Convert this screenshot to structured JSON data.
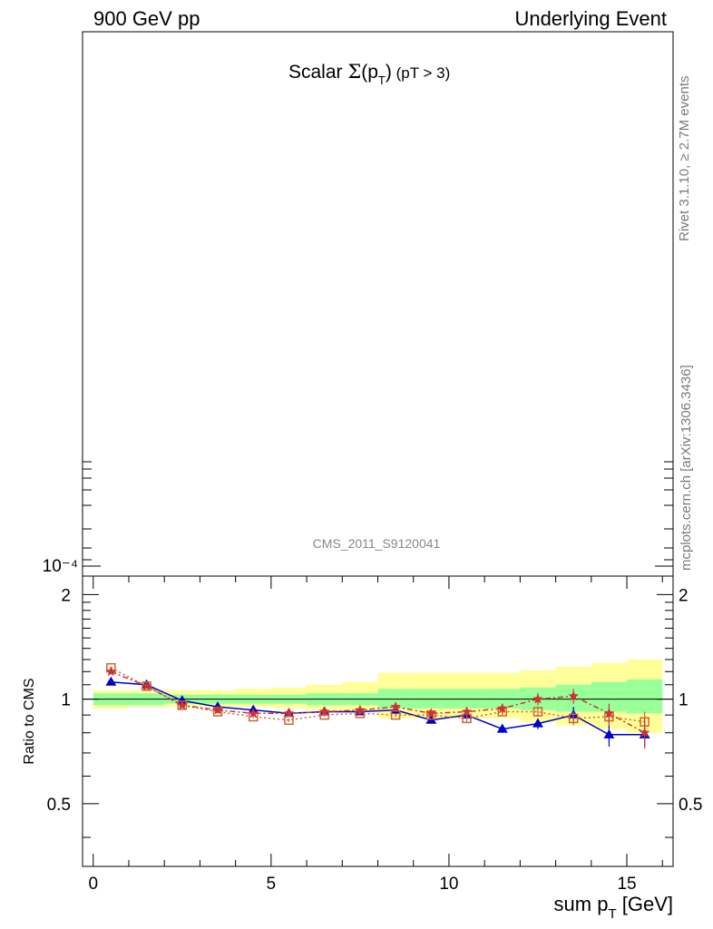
{
  "header": {
    "left": "900 GeV pp",
    "right": "Underlying Event"
  },
  "side_labels": {
    "rivet": "Rivet 3.1.10, ≥ 2.7M events",
    "mcplots": "mcplots.cern.ch [arXiv:1306.3436]"
  },
  "chart_data": {
    "type": "line",
    "title": "Scalar Σ(p_T) (pT > 3)",
    "watermark": "CMS_2011_S9120041",
    "main_panel": {
      "yscale": "log",
      "ytick_labels": [
        "10⁻⁴"
      ]
    },
    "ratio_panel": {
      "ylabel": "Ratio to CMS",
      "xlabel": "sum p_T [GeV]",
      "xlim": [
        -0.3,
        16.3
      ],
      "ylim": [
        0.33,
        2.26
      ],
      "yscale": "log",
      "xticks": [
        0,
        5,
        10,
        15
      ],
      "yticks": [
        0.5,
        1,
        2
      ],
      "ytick_labels": [
        "0.5",
        "1",
        "2"
      ],
      "reference_line": 1,
      "bands": {
        "x_edges": [
          0,
          1,
          2,
          3,
          4,
          5,
          6,
          7,
          8,
          9,
          10,
          11,
          12,
          13,
          14,
          15,
          16
        ],
        "green": {
          "color": "#99ff99",
          "low": [
            0.96,
            0.96,
            0.97,
            0.97,
            0.97,
            0.97,
            0.96,
            0.96,
            0.94,
            0.94,
            0.94,
            0.94,
            0.93,
            0.92,
            0.92,
            0.91
          ],
          "high": [
            1.04,
            1.04,
            1.03,
            1.03,
            1.03,
            1.03,
            1.04,
            1.04,
            1.07,
            1.07,
            1.07,
            1.07,
            1.08,
            1.1,
            1.12,
            1.14
          ]
        },
        "yellow": {
          "color": "#ffff99",
          "low": [
            0.94,
            0.95,
            0.95,
            0.95,
            0.95,
            0.94,
            0.93,
            0.92,
            0.88,
            0.88,
            0.88,
            0.88,
            0.86,
            0.84,
            0.82,
            0.8
          ],
          "high": [
            1.06,
            1.06,
            1.06,
            1.06,
            1.07,
            1.08,
            1.1,
            1.12,
            1.19,
            1.19,
            1.19,
            1.19,
            1.21,
            1.24,
            1.27,
            1.3
          ]
        }
      },
      "series": [
        {
          "color": "#0000cc",
          "marker": "triangle",
          "dash": "",
          "x": [
            0.5,
            1.5,
            2.5,
            3.5,
            4.5,
            5.5,
            6.5,
            7.5,
            8.5,
            9.5,
            10.5,
            11.5,
            12.5,
            13.5,
            14.5,
            15.5
          ],
          "y": [
            1.12,
            1.1,
            0.99,
            0.95,
            0.93,
            0.91,
            0.92,
            0.92,
            0.93,
            0.87,
            0.9,
            0.82,
            0.85,
            0.9,
            0.79,
            0.79
          ],
          "err": [
            0.01,
            0.01,
            0.01,
            0.01,
            0.01,
            0.01,
            0.01,
            0.01,
            0.02,
            0.02,
            0.02,
            0.02,
            0.03,
            0.05,
            0.06,
            0.06
          ]
        },
        {
          "color": "#cc6633",
          "marker": "open-square",
          "dash": "2,3",
          "x": [
            0.5,
            1.5,
            2.5,
            3.5,
            4.5,
            5.5,
            6.5,
            7.5,
            8.5,
            9.5,
            10.5,
            11.5,
            12.5,
            13.5,
            14.5,
            15.5
          ],
          "y": [
            1.23,
            1.09,
            0.96,
            0.92,
            0.89,
            0.87,
            0.9,
            0.91,
            0.9,
            0.9,
            0.88,
            0.92,
            0.92,
            0.88,
            0.89,
            0.86
          ],
          "err": [
            0.01,
            0.01,
            0.01,
            0.01,
            0.01,
            0.01,
            0.01,
            0.01,
            0.01,
            0.01,
            0.02,
            0.02,
            0.03,
            0.04,
            0.05,
            0.06
          ]
        },
        {
          "color": "#cc3333",
          "marker": "star",
          "dash": "6,3,2,3",
          "x": [
            0.5,
            1.5,
            2.5,
            3.5,
            4.5,
            5.5,
            6.5,
            7.5,
            8.5,
            9.5,
            10.5,
            11.5,
            12.5,
            13.5,
            14.5,
            15.5
          ],
          "y": [
            1.2,
            1.09,
            0.96,
            0.93,
            0.91,
            0.91,
            0.92,
            0.93,
            0.95,
            0.91,
            0.92,
            0.94,
            1.0,
            1.02,
            0.91,
            0.8
          ],
          "err": [
            0.01,
            0.01,
            0.01,
            0.01,
            0.01,
            0.01,
            0.01,
            0.01,
            0.02,
            0.02,
            0.02,
            0.03,
            0.04,
            0.05,
            0.06,
            0.08
          ]
        }
      ]
    }
  }
}
